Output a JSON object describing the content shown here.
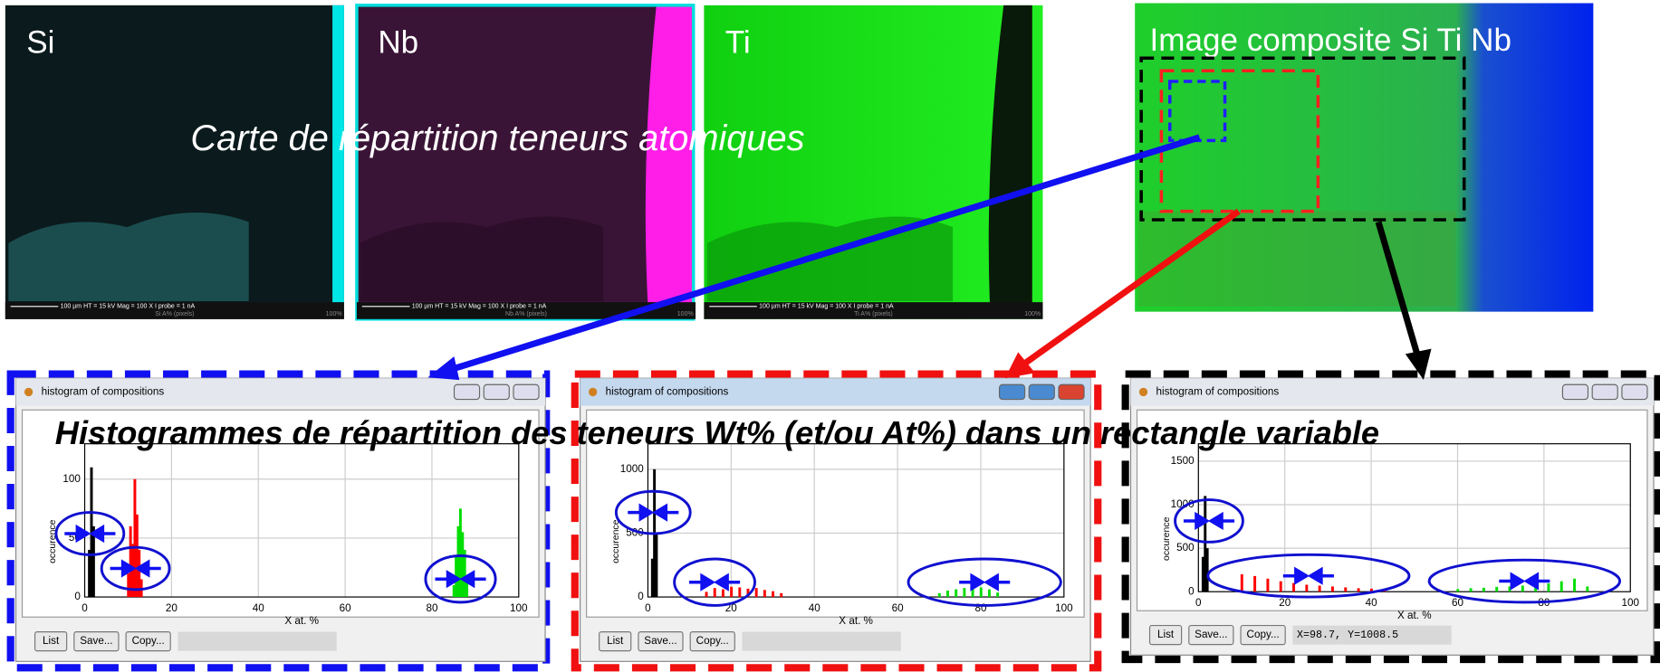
{
  "maps": [
    {
      "label": "Si",
      "scalebar": "100 µm   HT = 15 kV   Mag = 100 X   I probe = 1 nA",
      "caption": "Si A% (pixels)",
      "corner": "100%"
    },
    {
      "label": "Nb",
      "scalebar": "100 µm   HT = 15 kV   Mag = 100 X   I probe = 1 nA",
      "caption": "Nb A% (pixels)",
      "corner": "100%"
    },
    {
      "label": "Ti",
      "scalebar": "100 µm   HT = 15 kV   Mag = 100 X   I probe = 1 nA",
      "caption": "Ti A% (pixels)",
      "corner": "100%"
    }
  ],
  "maps_caption": "Carte de répartition teneurs atomiques",
  "composite_title": "Image composite Si Ti Nb",
  "histograms_caption": "Histogrammes de répartition des teneurs Wt% (et/ou At%) dans un rectangle variable",
  "windows": [
    {
      "title": "histogram of compositions",
      "ylabel": "occurence",
      "xlabel": "X at. %",
      "xlim": [
        0,
        100
      ],
      "xticks": [
        0,
        20,
        40,
        60,
        80,
        100
      ],
      "ylim": [
        0,
        130
      ],
      "yticks": [
        0,
        50,
        100
      ],
      "series": [
        {
          "color": "#000000",
          "x": [
            1,
            1.5,
            2
          ],
          "values": [
            40,
            110,
            60
          ]
        },
        {
          "color": "#ff0000",
          "x": [
            10,
            10.5,
            11,
            11.5,
            12,
            12.5,
            13
          ],
          "values": [
            20,
            60,
            45,
            100,
            70,
            40,
            15
          ]
        },
        {
          "color": "#00dd00",
          "x": [
            85,
            85.5,
            86,
            86.5,
            87,
            87.5,
            88
          ],
          "values": [
            10,
            35,
            60,
            75,
            55,
            40,
            15
          ]
        }
      ],
      "buttons": [
        "List",
        "Save...",
        "Copy..."
      ]
    },
    {
      "title": "histogram of compositions",
      "ylabel": "occurence",
      "xlabel": "X at. %",
      "xlim": [
        0,
        100
      ],
      "xticks": [
        0,
        20,
        40,
        60,
        80,
        100
      ],
      "ylim": [
        0,
        1200
      ],
      "yticks": [
        0,
        500,
        1000
      ],
      "series": [
        {
          "color": "#000000",
          "x": [
            1,
            1.5,
            2
          ],
          "values": [
            300,
            1000,
            500
          ]
        },
        {
          "color": "#ff0000",
          "x": [
            14,
            16,
            18,
            20,
            22,
            24,
            26,
            28,
            30,
            32
          ],
          "values": [
            40,
            70,
            60,
            80,
            75,
            65,
            70,
            55,
            45,
            30
          ]
        },
        {
          "color": "#00dd00",
          "x": [
            70,
            72,
            74,
            76,
            78,
            80,
            82,
            84
          ],
          "values": [
            30,
            50,
            60,
            70,
            80,
            75,
            60,
            35
          ]
        }
      ],
      "buttons": [
        "List",
        "Save...",
        "Copy..."
      ]
    },
    {
      "title": "histogram of compositions",
      "ylabel": "occurence",
      "xlabel": "X at. %",
      "xlim": [
        0,
        100
      ],
      "xticks": [
        0,
        20,
        40,
        60,
        80,
        100
      ],
      "ylim": [
        0,
        1700
      ],
      "yticks": [
        0,
        500,
        1000,
        1500
      ],
      "series": [
        {
          "color": "#000000",
          "x": [
            1,
            1.5,
            2
          ],
          "values": [
            400,
            1100,
            500
          ]
        },
        {
          "color": "#ff0000",
          "x": [
            10,
            13,
            16,
            19,
            22,
            25,
            28,
            31,
            34,
            37,
            40,
            43
          ],
          "values": [
            200,
            180,
            150,
            120,
            100,
            80,
            70,
            60,
            50,
            40,
            35,
            30
          ]
        },
        {
          "color": "#00dd00",
          "x": [
            60,
            63,
            66,
            69,
            72,
            75,
            78,
            81,
            84,
            87,
            90
          ],
          "values": [
            30,
            40,
            45,
            55,
            60,
            70,
            80,
            95,
            120,
            150,
            60
          ]
        }
      ],
      "buttons": [
        "List",
        "Save...",
        "Copy..."
      ],
      "status": "X=98.7, Y=1008.5"
    }
  ]
}
